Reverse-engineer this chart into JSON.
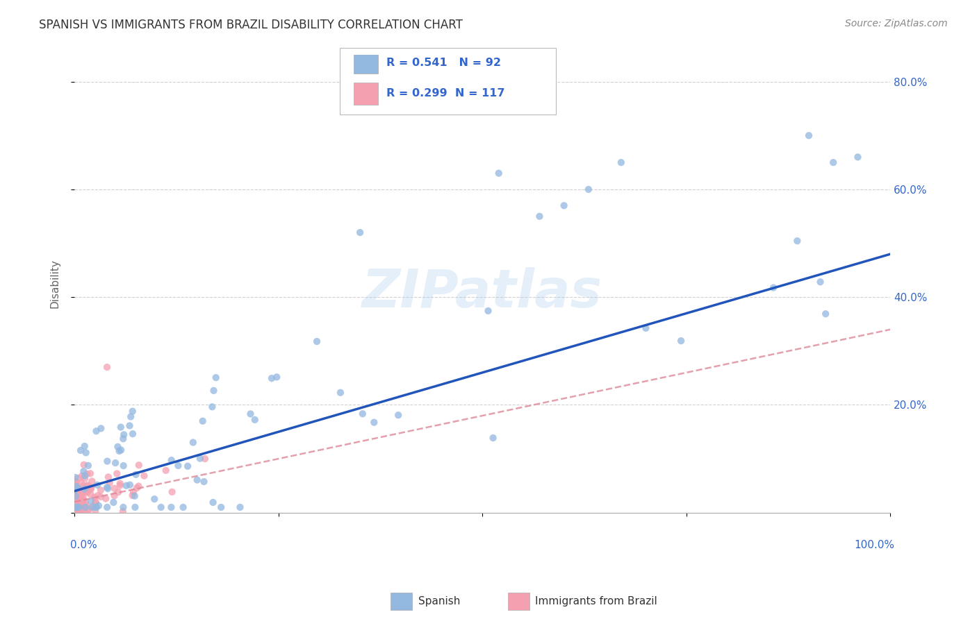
{
  "title": "SPANISH VS IMMIGRANTS FROM BRAZIL DISABILITY CORRELATION CHART",
  "source": "Source: ZipAtlas.com",
  "ylabel": "Disability",
  "xlim": [
    0.0,
    1.0
  ],
  "ylim": [
    0.0,
    0.85
  ],
  "blue_R": 0.541,
  "blue_N": 92,
  "pink_R": 0.299,
  "pink_N": 117,
  "blue_color": "#92B8E0",
  "pink_color": "#F4A0B0",
  "blue_line_color": "#2255BB",
  "pink_line_color": "#DD8899",
  "legend_label_blue": "Spanish",
  "legend_label_pink": "Immigrants from Brazil",
  "watermark": "ZIPatlas",
  "background_color": "#FFFFFF",
  "grid_color": "#CCCCCC",
  "title_color": "#333333",
  "axis_label_color": "#3366CC",
  "blue_line_slope": 0.44,
  "blue_line_intercept": 0.04,
  "pink_line_slope": 0.32,
  "pink_line_intercept": 0.02
}
